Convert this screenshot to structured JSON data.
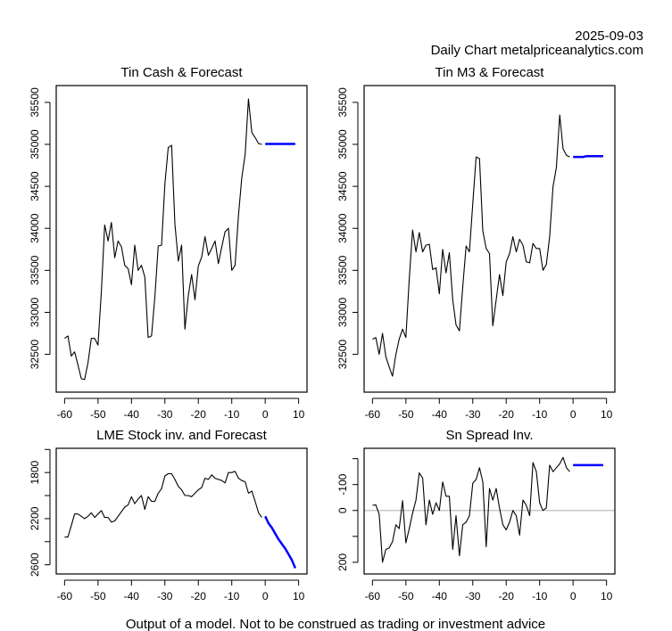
{
  "header": {
    "date": "2025-09-03",
    "subtitle": "Daily Chart metalpriceanalytics.com"
  },
  "footer": "Output of a model. Not to be construed as trading or investment advice",
  "colors": {
    "history": "#000000",
    "forecast": "#0000ff",
    "zero_line": "#bebebe"
  },
  "chart_data": [
    {
      "id": "tin-cash",
      "type": "line",
      "title": "Tin Cash & Forecast",
      "xlabel": "",
      "ylabel": "",
      "xlim": [
        -62.5,
        12.5
      ],
      "ylim": [
        32050,
        35700
      ],
      "inverted": false,
      "x_ticks": [
        -60,
        -50,
        -40,
        -30,
        -20,
        -10,
        0,
        10
      ],
      "y_ticks": [
        32500,
        33000,
        33500,
        34000,
        34500,
        35000,
        35500
      ],
      "grid": false,
      "series": [
        {
          "name": "history",
          "color": "#000000",
          "x": [
            -60,
            -59,
            -58,
            -57,
            -56,
            -55,
            -54,
            -53,
            -52,
            -51,
            -50,
            -49,
            -48,
            -47,
            -46,
            -45,
            -44,
            -43,
            -42,
            -41,
            -40,
            -39,
            -38,
            -37,
            -36,
            -35,
            -34,
            -33,
            -32,
            -31,
            -30,
            -29,
            -28,
            -27,
            -26,
            -25,
            -24,
            -23,
            -22,
            -21,
            -20,
            -19,
            -18,
            -17,
            -16,
            -15,
            -14,
            -13,
            -12,
            -11,
            -10,
            -9,
            -8,
            -7,
            -6,
            -5,
            -4,
            -3,
            -2,
            -1
          ],
          "y": [
            32690,
            32720,
            32480,
            32530,
            32370,
            32210,
            32200,
            32400,
            32690,
            32690,
            32610,
            33250,
            34040,
            33850,
            34070,
            33650,
            33850,
            33780,
            33560,
            33520,
            33330,
            33800,
            33500,
            33560,
            33420,
            32700,
            32720,
            33180,
            33790,
            33800,
            34530,
            34960,
            34990,
            34050,
            33610,
            33800,
            32800,
            33200,
            33450,
            33150,
            33550,
            33660,
            33900,
            33680,
            33760,
            33850,
            33580,
            33780,
            33960,
            34000,
            33500,
            33560,
            34150,
            34600,
            34880,
            35540,
            35140,
            35080,
            35010,
            35000
          ]
        },
        {
          "name": "forecast",
          "color": "#0000ff",
          "x": [
            0,
            1,
            2,
            3,
            4,
            5,
            6,
            7,
            8,
            9
          ],
          "y": [
            35005,
            35005,
            35005,
            35005,
            35005,
            35005,
            35005,
            35005,
            35005,
            35005
          ]
        }
      ]
    },
    {
      "id": "tin-m3",
      "type": "line",
      "title": "Tin M3 & Forecast",
      "xlabel": "",
      "ylabel": "",
      "xlim": [
        -62.5,
        12.5
      ],
      "ylim": [
        32050,
        35700
      ],
      "inverted": false,
      "x_ticks": [
        -60,
        -50,
        -40,
        -30,
        -20,
        -10,
        0,
        10
      ],
      "y_ticks": [
        32500,
        33000,
        33500,
        34000,
        34500,
        35000,
        35500
      ],
      "grid": false,
      "series": [
        {
          "name": "history",
          "color": "#000000",
          "x": [
            -60,
            -59,
            -58,
            -57,
            -56,
            -55,
            -54,
            -53,
            -52,
            -51,
            -50,
            -49,
            -48,
            -47,
            -46,
            -45,
            -44,
            -43,
            -42,
            -41,
            -40,
            -39,
            -38,
            -37,
            -36,
            -35,
            -34,
            -33,
            -32,
            -31,
            -30,
            -29,
            -28,
            -27,
            -26,
            -25,
            -24,
            -23,
            -22,
            -21,
            -20,
            -19,
            -18,
            -17,
            -16,
            -15,
            -14,
            -13,
            -12,
            -11,
            -10,
            -9,
            -8,
            -7,
            -6,
            -5,
            -4,
            -3,
            -2,
            -1
          ],
          "y": [
            32680,
            32700,
            32500,
            32750,
            32470,
            32350,
            32240,
            32500,
            32680,
            32800,
            32700,
            33400,
            33980,
            33720,
            33950,
            33720,
            33800,
            33810,
            33510,
            33530,
            33220,
            33750,
            33470,
            33710,
            33150,
            32850,
            32780,
            33300,
            33790,
            33720,
            34300,
            34850,
            34830,
            33970,
            33760,
            33700,
            32840,
            33150,
            33450,
            33200,
            33600,
            33700,
            33900,
            33720,
            33870,
            33800,
            33600,
            33590,
            33820,
            33760,
            33760,
            33500,
            33570,
            33900,
            34500,
            34720,
            35350,
            34950,
            34870,
            34850
          ]
        },
        {
          "name": "forecast",
          "color": "#0000ff",
          "x": [
            0,
            1,
            2,
            3,
            4,
            5,
            6,
            7,
            8,
            9
          ],
          "y": [
            34850,
            34850,
            34850,
            34850,
            34860,
            34860,
            34860,
            34860,
            34860,
            34860
          ]
        }
      ]
    },
    {
      "id": "lme-stock",
      "type": "line",
      "title": "LME Stock inv. and Forecast",
      "xlabel": "",
      "ylabel": "",
      "xlim": [
        -62.5,
        12.5
      ],
      "ylim": [
        1590,
        2680
      ],
      "inverted": true,
      "x_ticks": [
        -60,
        -50,
        -40,
        -30,
        -20,
        -10,
        0,
        10
      ],
      "y_ticks": [
        1600,
        1800,
        2000,
        2200,
        2400,
        2600
      ],
      "y_tick_labels_shown": [
        1800,
        2200,
        2600
      ],
      "grid": false,
      "series": [
        {
          "name": "history",
          "color": "#000000",
          "x": [
            -60,
            -59,
            -58,
            -57,
            -56,
            -55,
            -54,
            -53,
            -52,
            -51,
            -50,
            -49,
            -48,
            -47,
            -46,
            -45,
            -44,
            -43,
            -42,
            -41,
            -40,
            -39,
            -38,
            -37,
            -36,
            -35,
            -34,
            -33,
            -32,
            -31,
            -30,
            -29,
            -28,
            -27,
            -26,
            -25,
            -24,
            -23,
            -22,
            -21,
            -20,
            -19,
            -18,
            -17,
            -16,
            -15,
            -14,
            -13,
            -12,
            -11,
            -10,
            -9,
            -8,
            -7,
            -6,
            -5,
            -4,
            -3,
            -2,
            -1
          ],
          "y": [
            2360,
            2360,
            2260,
            2160,
            2160,
            2180,
            2200,
            2180,
            2150,
            2190,
            2160,
            2130,
            2190,
            2190,
            2230,
            2220,
            2180,
            2140,
            2100,
            2080,
            2010,
            2070,
            2030,
            2000,
            2120,
            2010,
            2050,
            2050,
            1980,
            1940,
            1830,
            1810,
            1810,
            1860,
            1920,
            1950,
            2000,
            2000,
            2010,
            1980,
            1950,
            1930,
            1850,
            1860,
            1820,
            1850,
            1860,
            1870,
            1890,
            1800,
            1800,
            1790,
            1850,
            1870,
            1880,
            1980,
            1960,
            2050,
            2150,
            2190
          ]
        },
        {
          "name": "forecast",
          "color": "#0000ff",
          "x": [
            0,
            1,
            2,
            3,
            4,
            5,
            6,
            7,
            8,
            9
          ],
          "y": [
            2180,
            2240,
            2280,
            2330,
            2380,
            2420,
            2460,
            2510,
            2560,
            2630
          ]
        }
      ]
    },
    {
      "id": "sn-spread",
      "type": "line",
      "title": "Sn Spread Inv.",
      "xlabel": "",
      "ylabel": "",
      "xlim": [
        -62.5,
        12.5
      ],
      "ylim": [
        -240,
        245
      ],
      "inverted": true,
      "x_ticks": [
        -60,
        -50,
        -40,
        -30,
        -20,
        -10,
        0,
        10
      ],
      "y_ticks": [
        -200,
        -100,
        0,
        100,
        200
      ],
      "y_tick_labels_shown": [
        -100,
        0,
        200
      ],
      "zero_line": true,
      "grid": false,
      "series": [
        {
          "name": "history",
          "color": "#000000",
          "x": [
            -60,
            -59,
            -58,
            -57,
            -56,
            -55,
            -54,
            -53,
            -52,
            -51,
            -50,
            -49,
            -48,
            -47,
            -46,
            -45,
            -44,
            -43,
            -42,
            -41,
            -40,
            -39,
            -38,
            -37,
            -36,
            -35,
            -34,
            -33,
            -32,
            -31,
            -30,
            -29,
            -28,
            -27,
            -26,
            -25,
            -24,
            -23,
            -22,
            -21,
            -20,
            -19,
            -18,
            -17,
            -16,
            -15,
            -14,
            -13,
            -12,
            -11,
            -10,
            -9,
            -8,
            -7,
            -6,
            -5,
            -4,
            -3,
            -2,
            -1
          ],
          "y": [
            -20,
            -22,
            15,
            200,
            150,
            145,
            120,
            55,
            70,
            -38,
            125,
            70,
            10,
            -40,
            -145,
            -125,
            55,
            -40,
            15,
            -30,
            0,
            -110,
            -55,
            -55,
            150,
            20,
            175,
            55,
            45,
            20,
            -105,
            -120,
            -165,
            -110,
            140,
            -85,
            -40,
            -85,
            -10,
            55,
            75,
            45,
            0,
            20,
            95,
            -40,
            -20,
            20,
            -185,
            -150,
            -30,
            0,
            -10,
            -175,
            -150,
            -165,
            -180,
            -205,
            -165,
            -150
          ]
        },
        {
          "name": "forecast",
          "color": "#0000ff",
          "x": [
            0,
            1,
            2,
            3,
            4,
            5,
            6,
            7,
            8,
            9
          ],
          "y": [
            -175,
            -175,
            -175,
            -175,
            -175,
            -175,
            -175,
            -175,
            -175,
            -175
          ]
        }
      ]
    }
  ]
}
